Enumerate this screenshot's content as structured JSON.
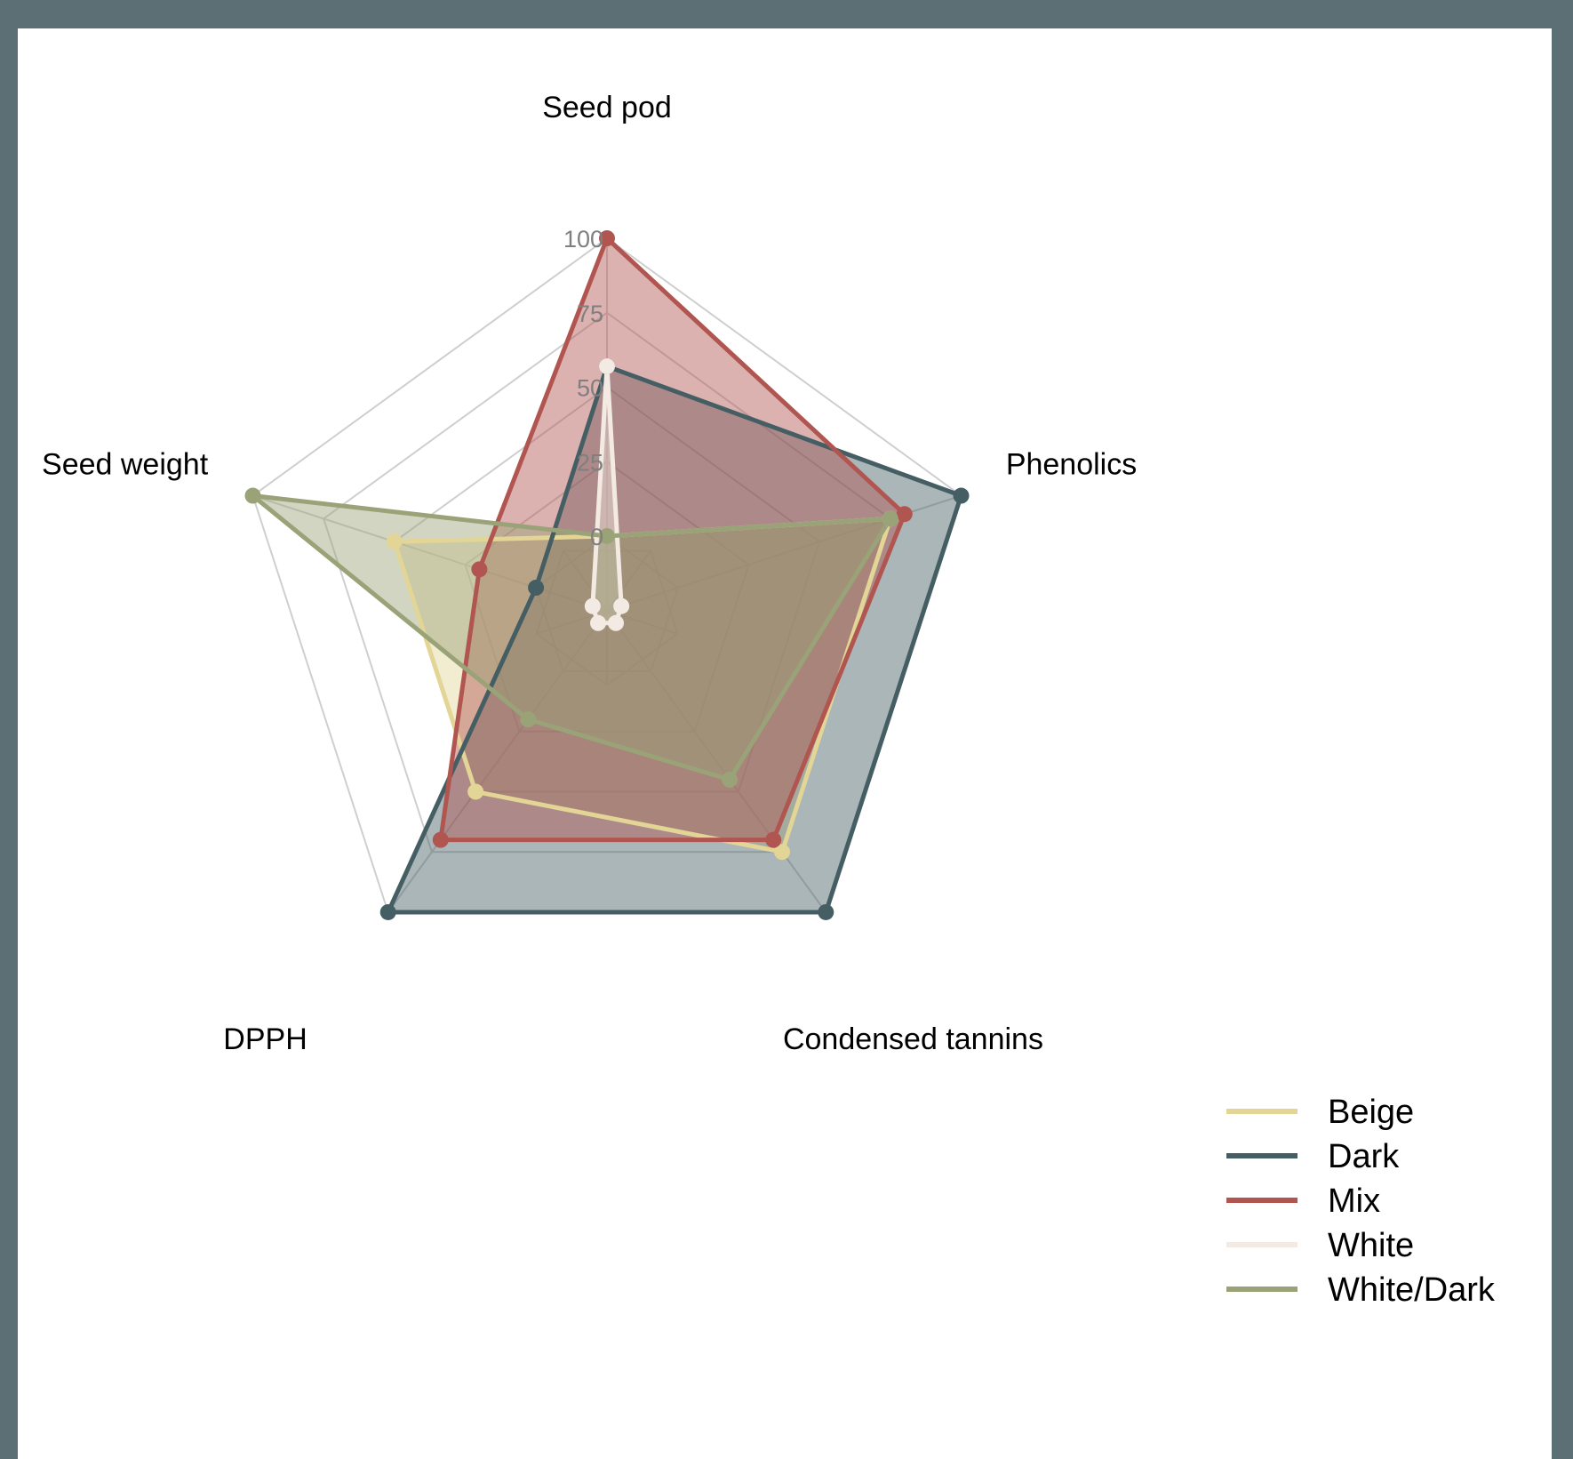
{
  "chart_data": {
    "type": "radar",
    "title": "",
    "axes": [
      "Seed pod",
      "Phenolics",
      "Condensed tannins",
      "DPPH",
      "Seed weight"
    ],
    "ticks": [
      "0",
      "25",
      "50",
      "75",
      "100"
    ],
    "range": [
      -50,
      100
    ],
    "grid": true,
    "legend_position": "bottom-right",
    "series": [
      {
        "name": "Beige",
        "color": "#e2d596",
        "values": [
          0,
          75,
          75,
          50,
          50
        ]
      },
      {
        "name": "Dark",
        "color": "#455e64",
        "values": [
          57,
          100,
          100,
          100,
          0
        ]
      },
      {
        "name": "Mix",
        "color": "#b05550",
        "values": [
          100,
          80,
          70,
          70,
          20
        ]
      },
      {
        "name": "White",
        "color": "#f3ebe3",
        "values": [
          57,
          -20,
          -20,
          -20,
          -20
        ]
      },
      {
        "name": "White/Dark",
        "color": "#9aa278",
        "values": [
          0,
          75,
          45,
          20,
          100
        ]
      }
    ]
  }
}
